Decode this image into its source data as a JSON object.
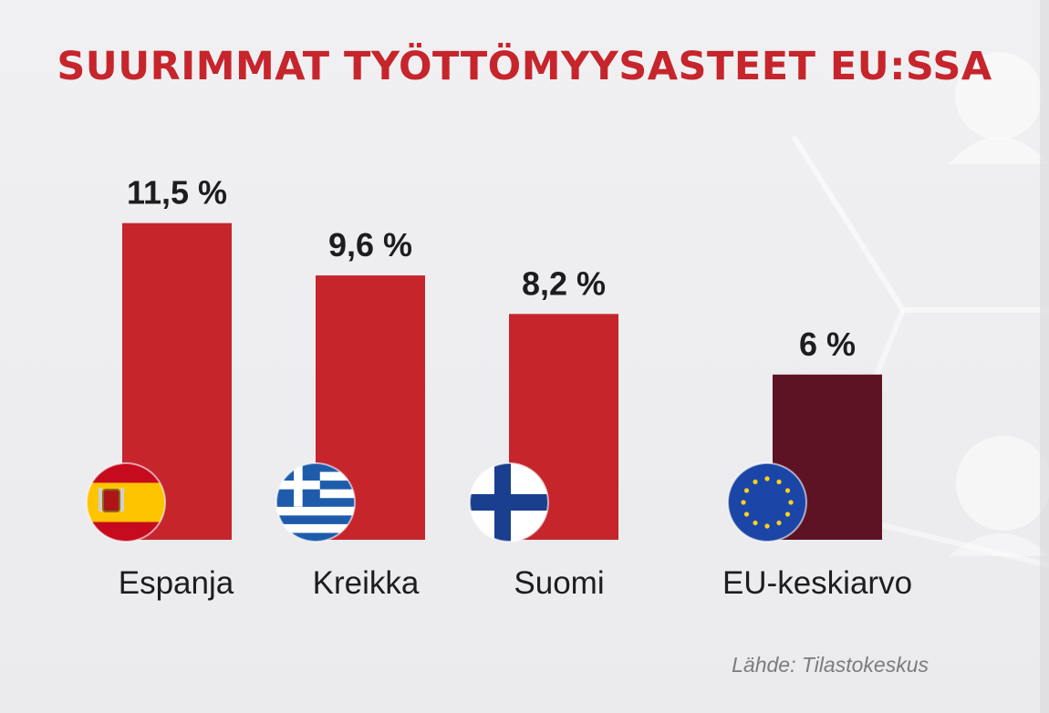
{
  "chart_data": {
    "type": "bar",
    "title": "SUURIMMAT TYÖTTÖMYYSASTEET EU:SSA",
    "source": "Lähde: Tilastokeskus",
    "categories": [
      "Espanja",
      "Kreikka",
      "Suomi",
      "EU-keskiarvo"
    ],
    "values": [
      11.5,
      9.6,
      8.2,
      6
    ],
    "value_labels": [
      "11,5 %",
      "9,6 %",
      "8,2 %",
      "6 %"
    ],
    "flags": [
      "spain-flag-icon",
      "greece-flag-icon",
      "finland-flag-icon",
      "eu-flag-icon"
    ],
    "colors": [
      "#c6252c",
      "#c6252c",
      "#c6252c",
      "#5e1325"
    ],
    "xlabel": "",
    "ylabel": "",
    "grid": false,
    "legend": "none"
  }
}
